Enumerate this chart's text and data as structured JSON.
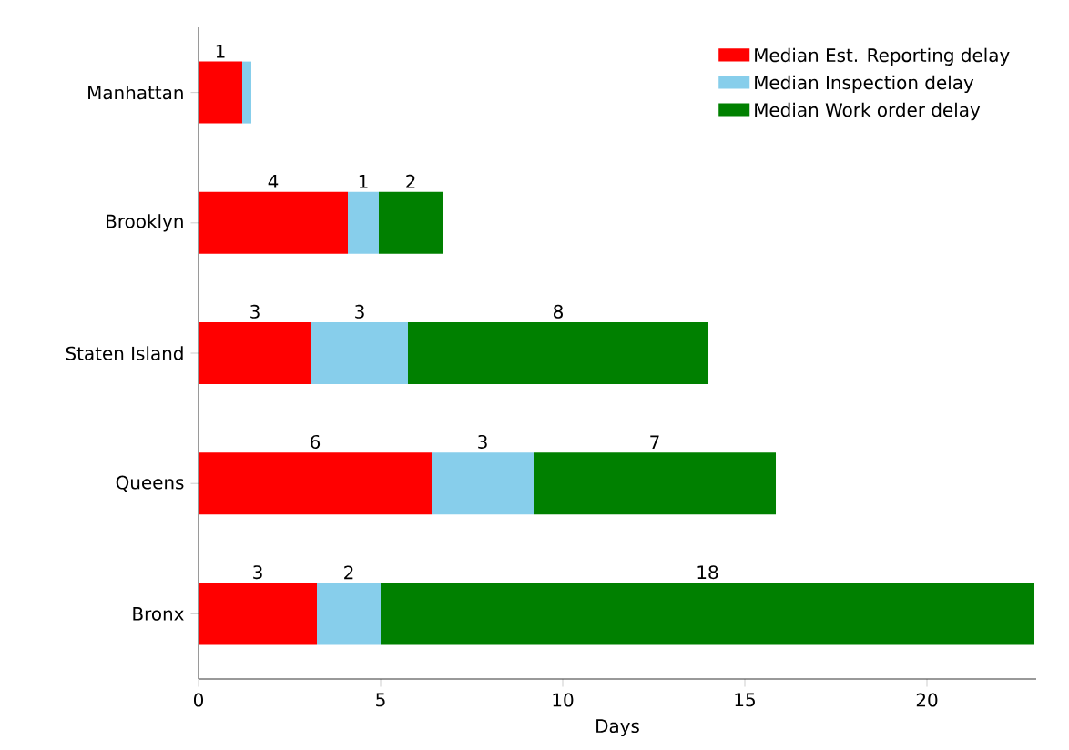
{
  "chart_data": {
    "type": "bar",
    "orientation": "horizontal",
    "stacked": true,
    "xlabel": "Days",
    "categories": [
      "Manhattan",
      "Brooklyn",
      "Staten Island",
      "Queens",
      "Bronx"
    ],
    "series": [
      {
        "name": "Median Est. Reporting delay",
        "color": "#ff0000",
        "values": [
          1.2,
          4.1,
          3.1,
          6.4,
          3.25
        ],
        "value_labels": [
          "1",
          "4",
          "3",
          "6",
          "3"
        ]
      },
      {
        "name": "Median Inspection delay",
        "color": "#87ceeb",
        "values": [
          0.25,
          0.85,
          2.65,
          2.8,
          1.75
        ],
        "value_labels": [
          null,
          "1",
          "3",
          "3",
          "2"
        ]
      },
      {
        "name": "Median Work order delay",
        "color": "#008000",
        "values": [
          0,
          1.75,
          8.25,
          6.65,
          17.95
        ],
        "value_labels": [
          null,
          "2",
          "8",
          "7",
          "18"
        ]
      }
    ],
    "xlim": [
      0,
      23
    ],
    "xticks": [
      0,
      5,
      10,
      15,
      20
    ],
    "legend": "top right"
  }
}
